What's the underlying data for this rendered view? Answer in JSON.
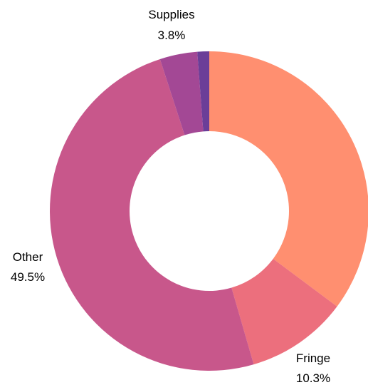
{
  "chart_data": {
    "type": "pie",
    "donut": true,
    "start": "top",
    "direction": "clockwise",
    "slices": [
      {
        "label": "",
        "pct_text": "",
        "value": 35.2,
        "color": "#ff8f70"
      },
      {
        "label": "Fringe",
        "pct_text": "10.3%",
        "value": 10.3,
        "color": "#ec6f7d"
      },
      {
        "label": "Other",
        "pct_text": "49.5%",
        "value": 49.5,
        "color": "#c8578b"
      },
      {
        "label": "Supplies",
        "pct_text": "3.8%",
        "value": 3.8,
        "color": "#a34895"
      },
      {
        "label": "",
        "pct_text": "",
        "value": 1.2,
        "color": "#6b3e98"
      }
    ]
  }
}
